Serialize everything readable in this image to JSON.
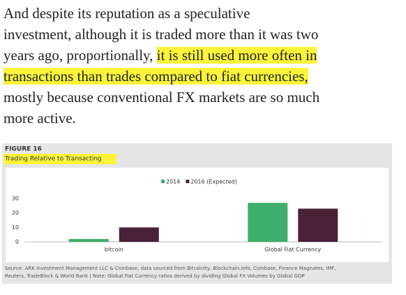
{
  "paragraph": [
    "And despite its reputation as a speculative",
    "investment, although it is traded more than it was two",
    "years ago, proportionally, ",
    "it is still used more often in",
    "transactions than trades compared to fiat currencies,",
    "mostly because conventional FX markets are so much",
    "more active."
  ],
  "figure_label": "FIGURE 16",
  "chart_data": {
    "type": "bar",
    "title": "Trading Relative to Transacting",
    "categories": [
      "bitcoin",
      "Global Fiat Currency"
    ],
    "series": [
      {
        "name": "2014",
        "color": "#3dae6b",
        "values": [
          2,
          27
        ]
      },
      {
        "name": "2016 (Expected)",
        "color": "#4a2238",
        "values": [
          10,
          23
        ]
      }
    ],
    "ylim": [
      0,
      30
    ],
    "yticks": [
      0,
      10,
      20,
      30
    ]
  },
  "source": [
    "Source: ARK Investment Management LLC & Coinbase, data sourced from Bitcoinity, Blockchain.info, Coinbase, Finance Magnates, IMF,",
    "Reuters, TradeBlock & World Bank  |  Note: Global Fiat Currency ratios derived by dividing Global FX Volumes by Global GDP"
  ]
}
